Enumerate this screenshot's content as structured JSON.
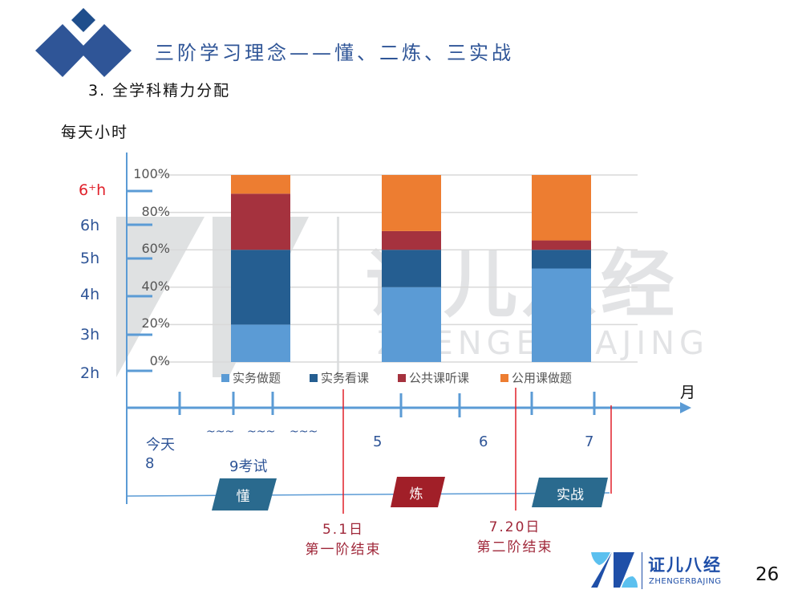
{
  "header": {
    "title": "三阶学习理念——懂、二炼、三实战",
    "subtitle": "3. 全学科精力分配"
  },
  "y_axis_label": "每天小时",
  "hour_labels": [
    "6⁺h",
    "6h",
    "5h",
    "4h",
    "3h",
    "2h"
  ],
  "hour_highlight_color": "#e0202a",
  "month_label": "月",
  "timeline": {
    "today": "今天",
    "m8": "8",
    "tildes": [
      "~~~",
      "~~~",
      "~~~"
    ],
    "m9": "9考试",
    "m5": "5",
    "m6": "6",
    "m7": "7",
    "stages": [
      {
        "label": "懂",
        "color": "#2a6a8e"
      },
      {
        "label": "炼",
        "color": "#a11f28"
      },
      {
        "label": "实战",
        "color": "#2a6a8e"
      }
    ],
    "markers": [
      {
        "date": "5.1日",
        "text": "第一阶结束"
      },
      {
        "date": "7.20日",
        "text": "第二阶结束"
      }
    ]
  },
  "chart_data": {
    "type": "bar",
    "stacked": true,
    "percent": true,
    "categories": [
      "",
      "",
      ""
    ],
    "ylim": [
      0,
      100
    ],
    "yticks": [
      "0%",
      "20%",
      "40%",
      "60%",
      "80%",
      "100%"
    ],
    "grid": true,
    "legend": "bottom",
    "series": [
      {
        "name": "实务做题",
        "color": "#5b9bd5",
        "values": [
          20,
          40,
          50
        ]
      },
      {
        "name": "实务看课",
        "color": "#255e91",
        "values": [
          40,
          20,
          10
        ]
      },
      {
        "name": "公共课听课",
        "color": "#a5323e",
        "values": [
          30,
          10,
          5
        ]
      },
      {
        "name": "公用课做题",
        "color": "#ed7d31",
        "values": [
          10,
          30,
          35
        ]
      }
    ]
  },
  "watermark": {
    "cn": "证儿八经",
    "en": "ZHENGERBAJING"
  },
  "footer": {
    "logo_cn": "证儿八经",
    "logo_en": "ZHENGERBAJING",
    "page": "26"
  }
}
